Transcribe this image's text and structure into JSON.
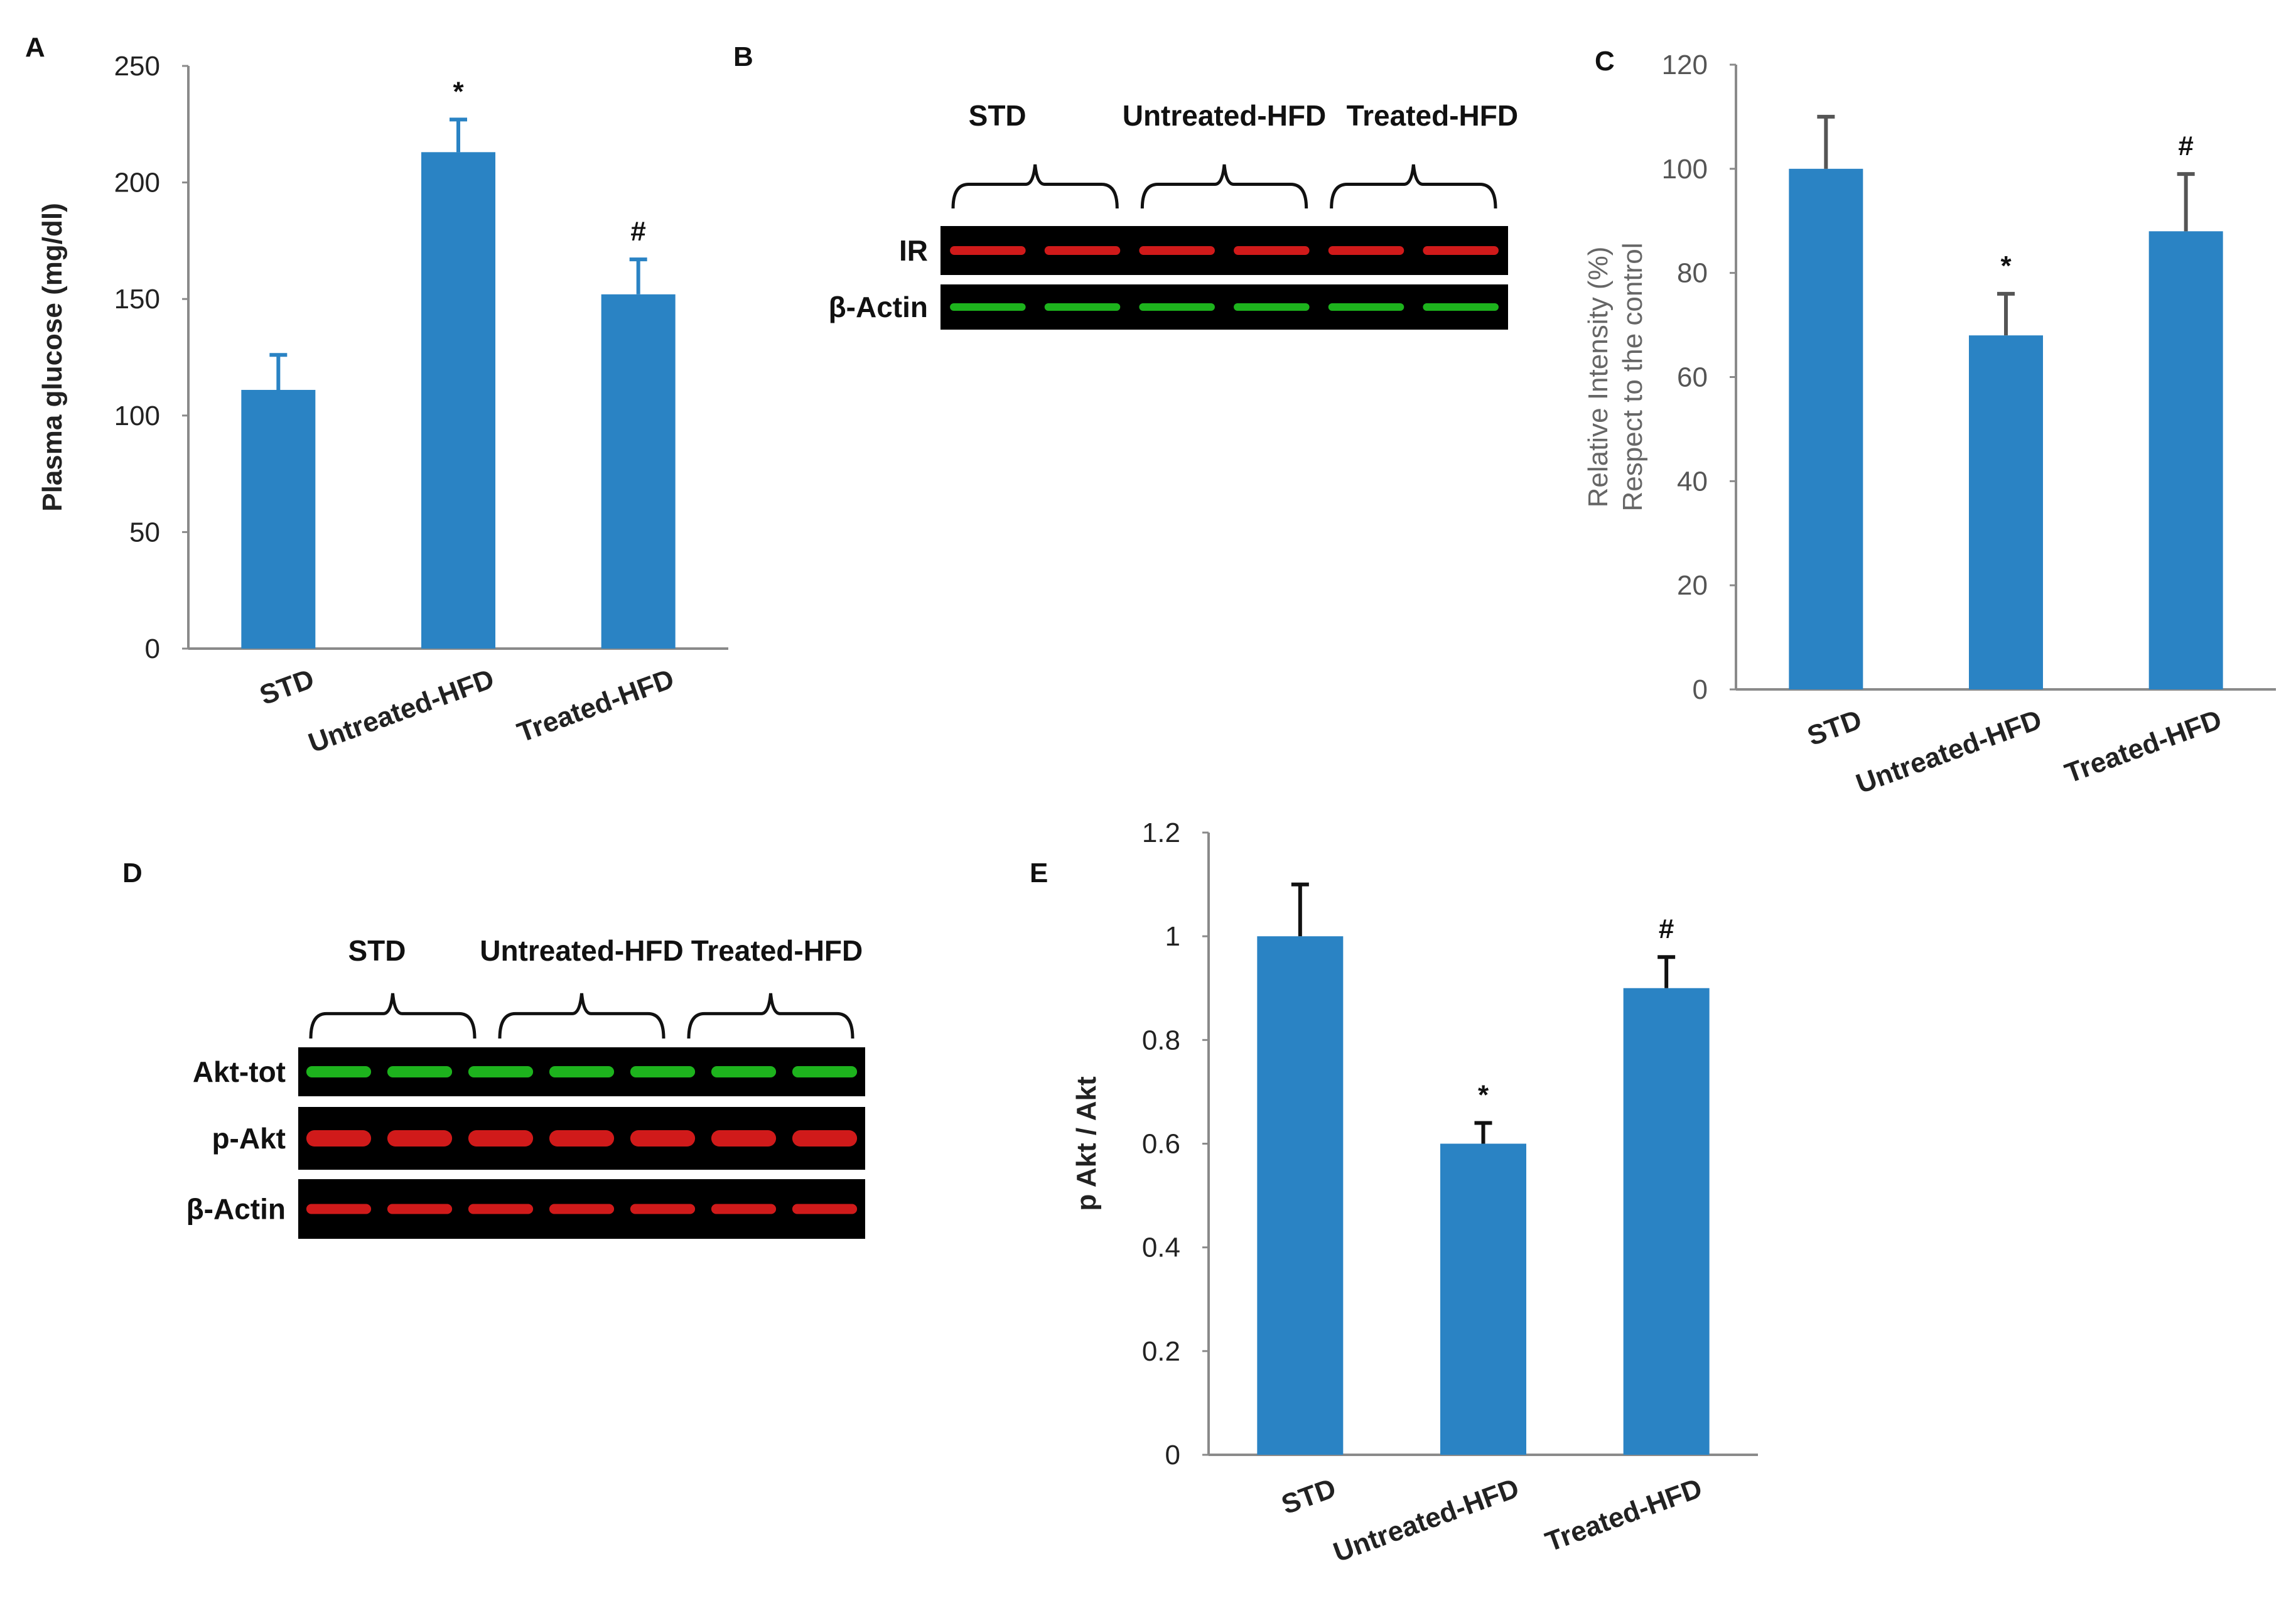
{
  "colors": {
    "bar": "#2a83c4",
    "axis": "#8a8a8a",
    "membrane": "#000000",
    "red_band": "#e21c1c",
    "green_band": "#1fc21f"
  },
  "chart_data": [
    {
      "panel": "A",
      "type": "bar",
      "categories": [
        "STD",
        "Untreated-HFD",
        "Treated-HFD"
      ],
      "values": [
        111,
        213,
        152
      ],
      "errors": [
        15,
        14,
        15
      ],
      "markers": [
        "",
        "*",
        "#"
      ],
      "ylabel": "Plasma glucose  (mg/dl)",
      "ylim": [
        0,
        250
      ],
      "yticks": [
        "0",
        "50",
        "100",
        "150",
        "200",
        "250"
      ]
    },
    {
      "panel": "C",
      "type": "bar",
      "categories": [
        "STD",
        "Untreated-HFD",
        "Treated-HFD"
      ],
      "values": [
        100,
        68,
        88
      ],
      "errors": [
        10,
        8,
        11
      ],
      "markers": [
        "",
        "*",
        "#"
      ],
      "ylabel_lines": [
        "Relative  Intensity (%)",
        "Respect to the control"
      ],
      "ylim": [
        0,
        120
      ],
      "yticks": [
        "0",
        "20",
        "40",
        "60",
        "80",
        "100",
        "120"
      ]
    },
    {
      "panel": "E",
      "type": "bar",
      "categories": [
        "STD",
        "Untreated-HFD",
        "Treated-HFD"
      ],
      "values": [
        1.0,
        0.6,
        0.9
      ],
      "errors": [
        0.1,
        0.04,
        0.06
      ],
      "markers": [
        "",
        "*",
        "#"
      ],
      "ylabel": "p Akt / Akt",
      "ylim": [
        0,
        1.2
      ],
      "yticks": [
        "0",
        "0.2",
        "0.4",
        "0.6",
        "0.8",
        "1",
        "1.2"
      ]
    }
  ],
  "blots": [
    {
      "panel": "B",
      "groups": [
        "STD",
        "Untreated-HFD",
        "Treated-HFD"
      ],
      "rows": [
        {
          "label": "IR",
          "band_color": "red"
        },
        {
          "label": "β-Actin",
          "band_color": "green"
        }
      ]
    },
    {
      "panel": "D",
      "groups": [
        "STD",
        "Untreated-HFD",
        "Treated-HFD"
      ],
      "rows": [
        {
          "label": "Akt-tot",
          "band_color": "green"
        },
        {
          "label": "p-Akt",
          "band_color": "red"
        },
        {
          "label": "β-Actin",
          "band_color": "red"
        }
      ]
    }
  ]
}
